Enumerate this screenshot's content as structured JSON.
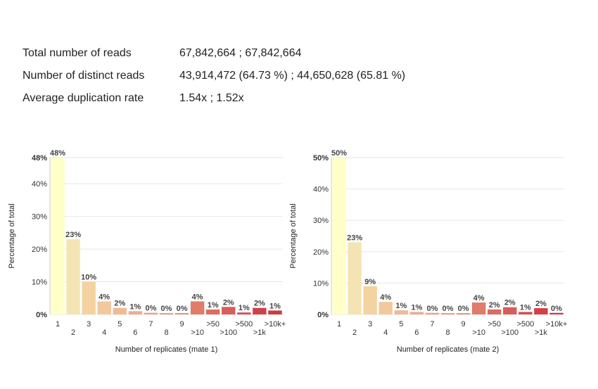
{
  "stats": [
    {
      "label": "Total number of reads",
      "value": "67,842,664 ; 67,842,664"
    },
    {
      "label": "Number of distinct reads",
      "value": "43,914,472 (64.73 %) ; 44,650,628 (65.81 %)"
    },
    {
      "label": "Average duplication rate",
      "value": "1.54x ; 1.52x"
    }
  ],
  "chart_data": [
    {
      "type": "bar",
      "xlabel": "Number of replicates (mate 1)",
      "ylabel": "Percentage of total",
      "categories": [
        "1",
        "2",
        "3",
        "4",
        "5",
        "6",
        "7",
        "8",
        "9",
        ">10",
        ">50",
        ">100",
        ">500",
        ">1k",
        ">10k+"
      ],
      "values": [
        48,
        23,
        10,
        4,
        2,
        1,
        0.5,
        0.4,
        0.4,
        4,
        1.5,
        2.3,
        0.6,
        2,
        1.2
      ],
      "data_labels": [
        "48%",
        "23%",
        "10%",
        "4%",
        "2%",
        "1%",
        "0%",
        "0%",
        "0%",
        "4%",
        "1%",
        "2%",
        "1%",
        "2%",
        "1%"
      ],
      "yticks": [
        "0%",
        "10%",
        "20%",
        "30%",
        "40%",
        "48%"
      ],
      "ytick_values": [
        0,
        10,
        20,
        30,
        40,
        48
      ],
      "ylim": [
        0,
        48
      ],
      "colors": [
        "#ffffc8",
        "#f5e4b3",
        "#f3d3a0",
        "#f3c89c",
        "#f2b994",
        "#efac8a",
        "#eba181",
        "#e89579",
        "#e58a71",
        "#e17b6a",
        "#dd6c62",
        "#d95d59",
        "#d54e50",
        "#d24047",
        "#ce3a40"
      ]
    },
    {
      "type": "bar",
      "xlabel": "Number of replicates (mate 2)",
      "ylabel": "Percentage of total",
      "categories": [
        "1",
        "2",
        "3",
        "4",
        "5",
        "6",
        "7",
        "8",
        "9",
        ">10",
        ">50",
        ">100",
        ">500",
        ">1k",
        ">10k+"
      ],
      "values": [
        50,
        23,
        9,
        4,
        1.3,
        0.8,
        0.5,
        0.4,
        0.4,
        3.8,
        1.6,
        2.3,
        0.8,
        2,
        0.5
      ],
      "data_labels": [
        "50%",
        "23%",
        "9%",
        "4%",
        "1%",
        "1%",
        "0%",
        "0%",
        "0%",
        "4%",
        "2%",
        "2%",
        "1%",
        "2%",
        "0%"
      ],
      "yticks": [
        "0%",
        "10%",
        "20%",
        "30%",
        "40%",
        "50%"
      ],
      "ytick_values": [
        0,
        10,
        20,
        30,
        40,
        50
      ],
      "ylim": [
        0,
        50
      ],
      "colors": [
        "#ffffc8",
        "#f5e4b3",
        "#f3d3a0",
        "#f3c89c",
        "#f2b994",
        "#efac8a",
        "#eba181",
        "#e89579",
        "#e58a71",
        "#e17b6a",
        "#dd6c62",
        "#d95d59",
        "#d54e50",
        "#d24047",
        "#ce3a40"
      ]
    }
  ]
}
